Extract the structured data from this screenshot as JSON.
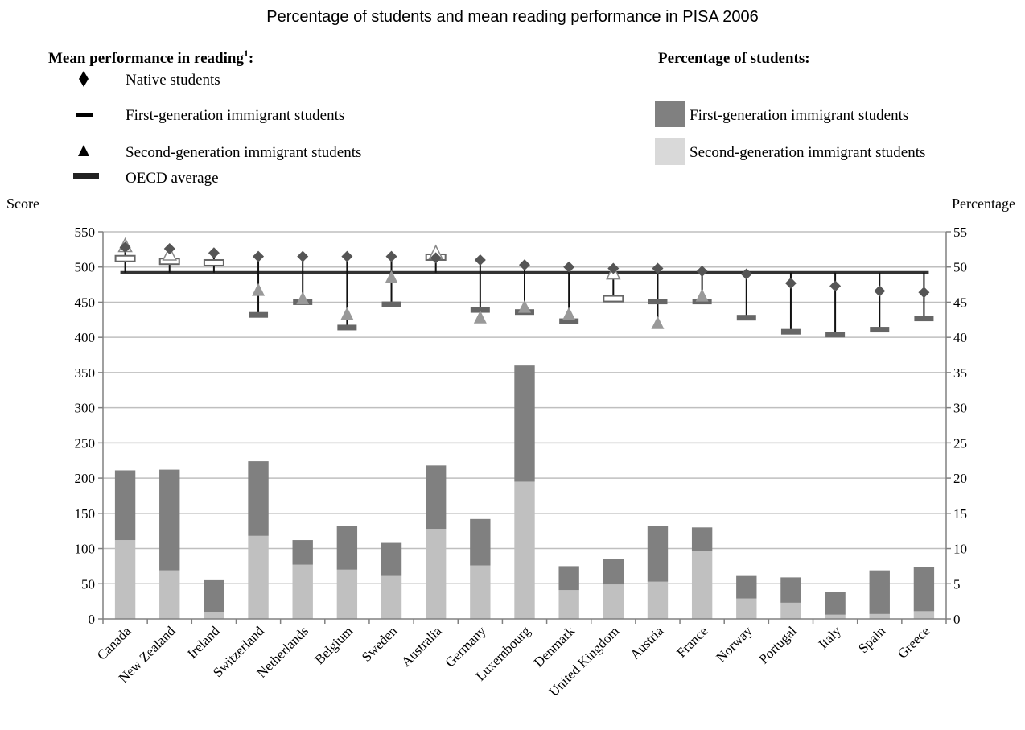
{
  "chart_data": {
    "type": "bar",
    "title": "Percentage of students and mean reading performance in PISA 2006",
    "legend": {
      "performance_heading": "Mean performance in reading",
      "performance_heading_sup": "1",
      "performance_heading_suffix": ":",
      "performance_items": [
        {
          "label": "Native students",
          "marker": "diamond"
        },
        {
          "label": "First-generation immigrant students",
          "marker": "dash"
        },
        {
          "label": "Second-generation immigrant students",
          "marker": "triangle"
        },
        {
          "label": "OECD average",
          "marker": "thick-line"
        }
      ],
      "percentage_heading": "Percentage of students:",
      "percentage_items": [
        {
          "label": "First-generation immigrant students",
          "color": "#808080"
        },
        {
          "label": "Second-generation immigrant students",
          "color": "#c0c0c0"
        }
      ]
    },
    "y_left": {
      "label": "Score",
      "min": 0,
      "max": 550,
      "step": 50
    },
    "y_right": {
      "label": "Percentage",
      "min": 0,
      "max": 55,
      "step": 5
    },
    "oecd_average": 492,
    "categories": [
      "Canada",
      "New Zealand",
      "Ireland",
      "Switzerland",
      "Netherlands",
      "Belgium",
      "Sweden",
      "Australia",
      "Germany",
      "Luxembourg",
      "Denmark",
      "United Kingdom",
      "Austria",
      "France",
      "Norway",
      "Portugal",
      "Italy",
      "Spain",
      "Greece"
    ],
    "percentage_first_generation": [
      9.9,
      14.3,
      4.5,
      10.6,
      3.5,
      6.2,
      4.7,
      9.0,
      6.6,
      16.5,
      3.4,
      3.6,
      7.9,
      3.4,
      3.2,
      3.6,
      3.2,
      6.2,
      6.3
    ],
    "percentage_second_generation": [
      11.2,
      6.9,
      1.0,
      11.8,
      7.7,
      7.0,
      6.1,
      12.8,
      7.6,
      19.5,
      4.1,
      4.9,
      5.3,
      9.6,
      2.9,
      2.3,
      0.6,
      0.7,
      1.1
    ],
    "native_score": [
      528,
      526,
      520,
      515,
      515,
      515,
      515,
      513,
      510,
      503,
      500,
      498,
      498,
      494,
      490,
      477,
      473,
      466,
      464
    ],
    "first_generation_score": [
      512,
      508,
      506,
      432,
      450,
      414,
      447,
      514,
      439,
      436,
      423,
      455,
      451,
      451,
      428,
      408,
      404,
      411,
      427
    ],
    "second_generation_score": [
      530,
      518,
      null,
      467,
      455,
      433,
      485,
      520,
      428,
      443,
      433,
      491,
      420,
      459,
      null,
      null,
      null,
      null,
      null
    ],
    "hollow_markers": [
      "Canada",
      "New Zealand",
      "Ireland",
      "Australia",
      "United Kingdom"
    ],
    "grid": "horizontal",
    "legend_placement": "top"
  },
  "colors": {
    "first_generation": "#808080",
    "second_generation": "#c0c0c0",
    "native": "#555555",
    "first_generation_marker": "#666666",
    "second_generation_marker": "#999999",
    "oecd_line": "#333333",
    "grid": "#bfbfbf"
  }
}
